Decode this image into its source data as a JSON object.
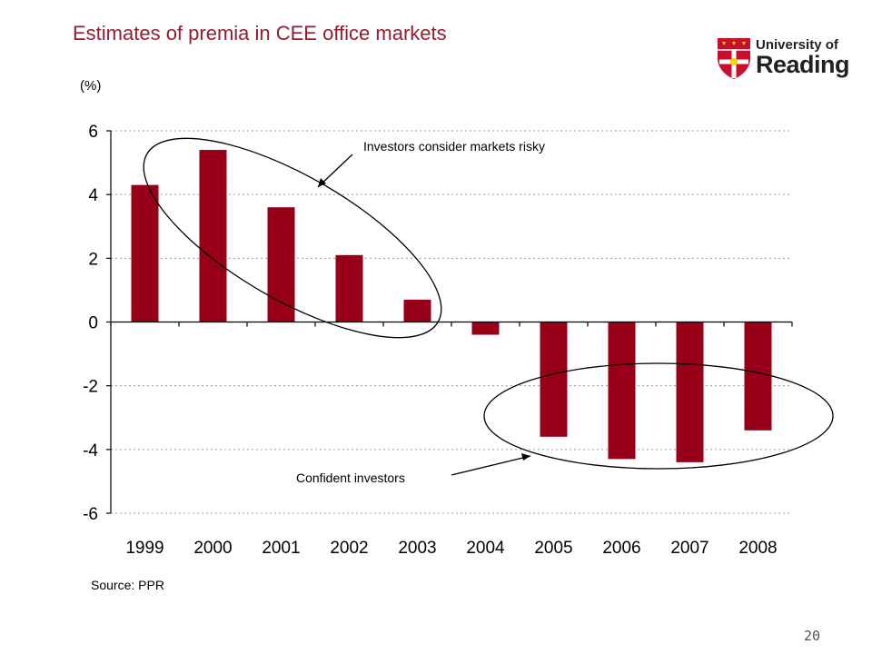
{
  "slide": {
    "title": "Estimates of premia in CEE office markets",
    "source": "Source: PPR",
    "page_number": "20"
  },
  "logo": {
    "line1": "University of",
    "line2": "Reading",
    "colors": {
      "shield": "#c8102e",
      "text": "#231f20"
    }
  },
  "colors": {
    "bar": "#98001a",
    "grid": "#9a9a9a",
    "title": "#9b1b2e"
  },
  "chart_data": {
    "type": "bar",
    "title": "",
    "ylabel": "(%)",
    "xlabel": "",
    "categories": [
      "1999",
      "2000",
      "2001",
      "2002",
      "2003",
      "2004",
      "2005",
      "2006",
      "2007",
      "2008"
    ],
    "values": [
      4.3,
      5.4,
      3.6,
      2.1,
      0.7,
      -0.4,
      -3.6,
      -4.3,
      -4.4,
      -3.4
    ],
    "ylim": [
      -6,
      6
    ],
    "yticks": [
      "6",
      "4",
      "2",
      "0",
      "-2",
      "-4",
      "-6"
    ],
    "grid": "horizontal dashed",
    "legend": "none",
    "annotations": [
      {
        "text": "Investors consider markets risky"
      },
      {
        "text": "Confident investors"
      }
    ]
  }
}
